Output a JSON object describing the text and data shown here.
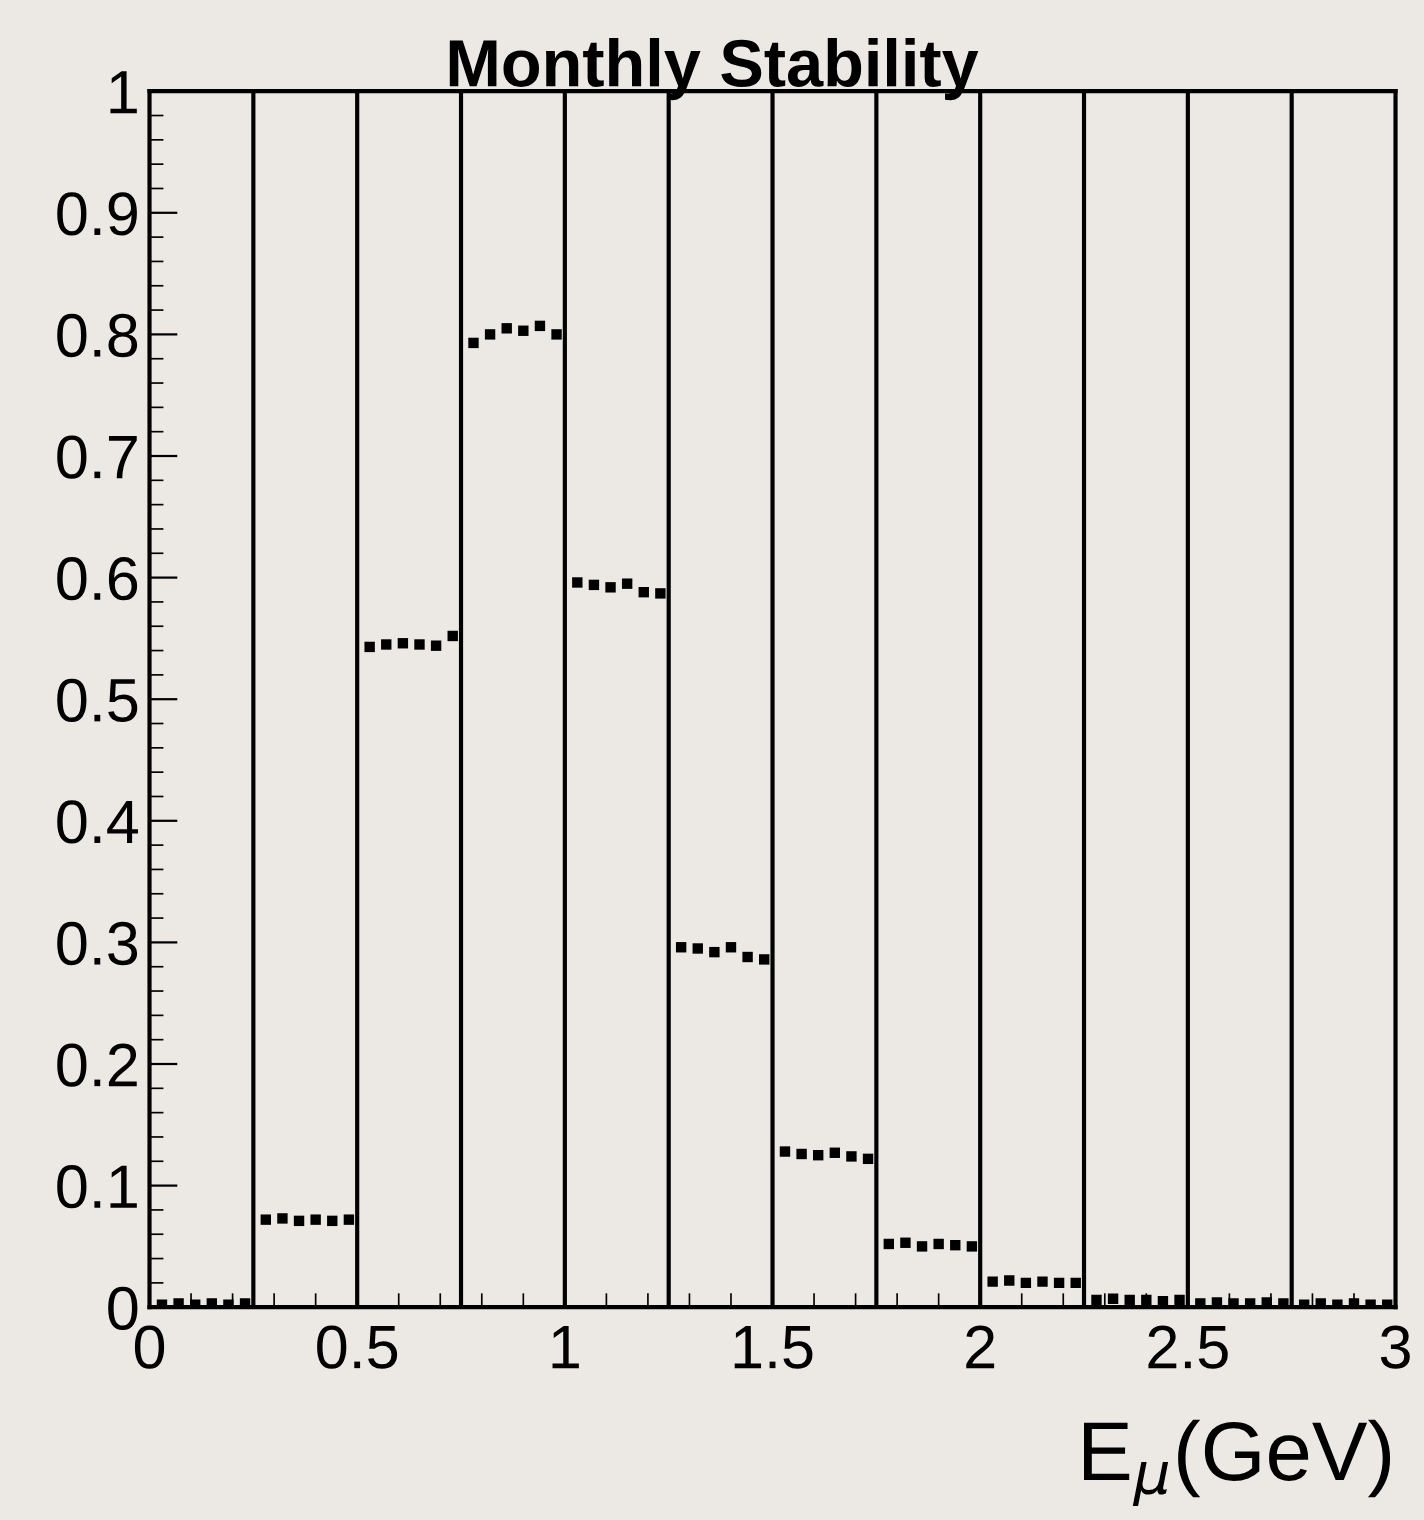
{
  "chart_data": {
    "type": "scatter",
    "title": "Monthly Stability",
    "xlabel": "E$_{μ}$(GeV)",
    "xlim": [
      0,
      3
    ],
    "xticks": [
      0,
      0.5,
      1,
      1.5,
      2,
      2.5,
      3
    ],
    "ylim": [
      0,
      1
    ],
    "yticks": [
      0,
      0.1,
      0.2,
      0.3,
      0.4,
      0.5,
      0.6,
      0.7,
      0.8,
      0.9,
      1
    ],
    "marker": "square",
    "grid": false,
    "series": [
      {
        "color": "#000000",
        "x": [
          0.03,
          0.07,
          0.11,
          0.15,
          0.19,
          0.23,
          0.28,
          0.32,
          0.36,
          0.4,
          0.44,
          0.48,
          0.53,
          0.57,
          0.61,
          0.65,
          0.69,
          0.73,
          0.78,
          0.82,
          0.86,
          0.9,
          0.94,
          0.98,
          1.03,
          1.07,
          1.11,
          1.15,
          1.19,
          1.23,
          1.28,
          1.32,
          1.36,
          1.4,
          1.44,
          1.48,
          1.53,
          1.57,
          1.61,
          1.65,
          1.69,
          1.73,
          1.78,
          1.82,
          1.86,
          1.9,
          1.94,
          1.98,
          2.03,
          2.07,
          2.11,
          2.15,
          2.19,
          2.23,
          2.28,
          2.32,
          2.36,
          2.4,
          2.44,
          2.48,
          2.53,
          2.57,
          2.61,
          2.65,
          2.69,
          2.73,
          2.78,
          2.82,
          2.86,
          2.9,
          2.94,
          2.98
        ],
        "values": [
          0.002,
          0.003,
          0.002,
          0.003,
          0.002,
          0.003,
          0.072,
          0.073,
          0.071,
          0.072,
          0.071,
          0.072,
          0.543,
          0.545,
          0.546,
          0.545,
          0.544,
          0.552,
          0.793,
          0.8,
          0.805,
          0.803,
          0.807,
          0.8,
          0.596,
          0.594,
          0.592,
          0.595,
          0.588,
          0.587,
          0.296,
          0.295,
          0.292,
          0.296,
          0.288,
          0.286,
          0.128,
          0.126,
          0.125,
          0.127,
          0.124,
          0.122,
          0.052,
          0.053,
          0.05,
          0.052,
          0.051,
          0.05,
          0.021,
          0.022,
          0.02,
          0.021,
          0.02,
          0.02,
          0.006,
          0.007,
          0.006,
          0.006,
          0.005,
          0.006,
          0.003,
          0.004,
          0.003,
          0.003,
          0.004,
          0.003,
          0.002,
          0.003,
          0.002,
          0.003,
          0.002,
          0.002
        ]
      }
    ],
    "ref_lines": [
      {
        "axis": "x",
        "value": 0.25,
        "color": "#000000"
      },
      {
        "axis": "x",
        "value": 0.5,
        "color": "#000000"
      },
      {
        "axis": "x",
        "value": 0.75,
        "color": "#000000"
      },
      {
        "axis": "x",
        "value": 1.0,
        "color": "#000000"
      },
      {
        "axis": "x",
        "value": 1.25,
        "color": "#000000"
      },
      {
        "axis": "x",
        "value": 1.5,
        "color": "#000000"
      },
      {
        "axis": "x",
        "value": 1.75,
        "color": "#000000"
      },
      {
        "axis": "x",
        "value": 2.0,
        "color": "#000000"
      },
      {
        "axis": "x",
        "value": 2.25,
        "color": "#000000"
      },
      {
        "axis": "x",
        "value": 2.5,
        "color": "#000000"
      },
      {
        "axis": "x",
        "value": 2.75,
        "color": "#000000"
      }
    ]
  }
}
